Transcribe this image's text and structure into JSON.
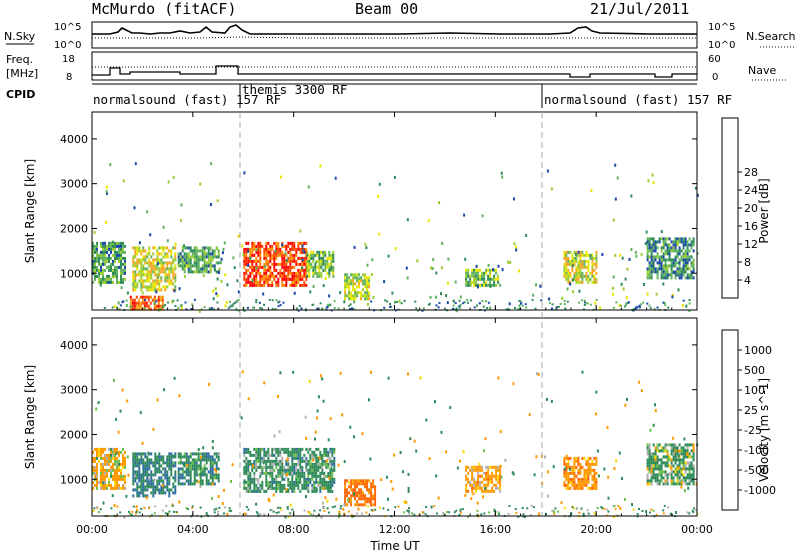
{
  "header": {
    "station": "McMurdo (fitACF)",
    "beam": "Beam 00",
    "date": "21/Jul/2011"
  },
  "top_panel": {
    "left_label": "N.Sky",
    "right_label": "N.Search",
    "left_ticks": [
      "10^5",
      "10^0"
    ],
    "right_ticks": [
      "10^5",
      "10^0"
    ]
  },
  "freq_panel": {
    "left_label_1": "Freq.",
    "left_label_2": "[MHz]",
    "right_label": "Nave",
    "left_ticks": [
      "18",
      "8"
    ],
    "right_ticks": [
      "60",
      "0"
    ]
  },
  "cpid": {
    "label": "CPID",
    "segments": [
      {
        "text": "normalsound (fast) 157 RF"
      },
      {
        "text": "themis 3300 RF"
      },
      {
        "text": "normalsound (fast) 157 RF"
      }
    ]
  },
  "x_axis": {
    "label": "Time UT",
    "ticks": [
      "00:00",
      "04:00",
      "08:00",
      "12:00",
      "16:00",
      "20:00",
      "00:00"
    ]
  },
  "y_axis": {
    "label": "Slant Range [km]",
    "ticks": [
      "1000",
      "2000",
      "3000",
      "4000"
    ]
  },
  "power_scale": {
    "title": "Power [dB]",
    "ticks": [
      "4",
      "8",
      "12",
      "16",
      "20",
      "24",
      "28"
    ],
    "colors": [
      "#0000ff",
      "#1b48a8",
      "#2e8b57",
      "#5fb35f",
      "#9acd32",
      "#e6e600",
      "#f5a623",
      "#ff8c00",
      "#ff4500",
      "#ff0000"
    ]
  },
  "velocity_scale": {
    "title": "Velocity [m s^-1]",
    "ticks": [
      "1000",
      "500",
      "100",
      "25",
      "-25",
      "-100",
      "-500",
      "-1000"
    ],
    "colors": [
      "#1e3c96",
      "#2e6e9e",
      "#2e8b57",
      "#6cc04a",
      "#b0b0b0",
      "#ffd700",
      "#ff9900",
      "#ff6600",
      "#ff0000"
    ]
  },
  "chart_data": {
    "type": "heatmap",
    "title": "McMurdo (fitACF) Beam 00 21/Jul/2011",
    "xlabel": "Time UT",
    "ylabel": "Slant Range [km]",
    "xlim": [
      "00:00",
      "24:00"
    ],
    "ylim": [
      180,
      4600
    ],
    "series": [
      {
        "name": "Power [dB]",
        "value_range": [
          0,
          30
        ],
        "regions": [
          {
            "t_start": 0.0,
            "t_end": 1.3,
            "r_min": 800,
            "r_max": 1700,
            "value": 10
          },
          {
            "t_start": 1.6,
            "t_end": 3.3,
            "r_min": 600,
            "r_max": 1600,
            "value": 16
          },
          {
            "t_start": 1.5,
            "t_end": 2.8,
            "r_min": 200,
            "r_max": 500,
            "value": 24
          },
          {
            "t_start": 3.4,
            "t_end": 5.0,
            "r_min": 1000,
            "r_max": 1600,
            "value": 10
          },
          {
            "t_start": 6.0,
            "t_end": 8.5,
            "r_min": 700,
            "r_max": 1700,
            "value": 26
          },
          {
            "t_start": 8.5,
            "t_end": 9.6,
            "r_min": 900,
            "r_max": 1500,
            "value": 12
          },
          {
            "t_start": 10.0,
            "t_end": 11.0,
            "r_min": 400,
            "r_max": 1000,
            "value": 14
          },
          {
            "t_start": 14.8,
            "t_end": 16.2,
            "r_min": 700,
            "r_max": 1100,
            "value": 12
          },
          {
            "t_start": 18.7,
            "t_end": 20.0,
            "r_min": 800,
            "r_max": 1500,
            "value": 16
          },
          {
            "t_start": 22.0,
            "t_end": 23.9,
            "r_min": 900,
            "r_max": 1800,
            "value": 8
          }
        ]
      },
      {
        "name": "Velocity [m s^-1]",
        "value_range": [
          -1000,
          1000
        ],
        "regions": [
          {
            "t_start": 0.0,
            "t_end": 1.3,
            "r_min": 800,
            "r_max": 1700,
            "value": -100
          },
          {
            "t_start": 1.6,
            "t_end": 3.3,
            "r_min": 600,
            "r_max": 1600,
            "value": 300
          },
          {
            "t_start": 3.4,
            "t_end": 5.0,
            "r_min": 900,
            "r_max": 1600,
            "value": 200
          },
          {
            "t_start": 6.0,
            "t_end": 9.6,
            "r_min": 700,
            "r_max": 1700,
            "value": 150
          },
          {
            "t_start": 10.0,
            "t_end": 11.2,
            "r_min": 400,
            "r_max": 1000,
            "value": -400
          },
          {
            "t_start": 14.8,
            "t_end": 16.2,
            "r_min": 700,
            "r_max": 1300,
            "value": -150
          },
          {
            "t_start": 18.7,
            "t_end": 20.0,
            "r_min": 800,
            "r_max": 1500,
            "value": -200
          },
          {
            "t_start": 22.0,
            "t_end": 23.9,
            "r_min": 900,
            "r_max": 1800,
            "value": 100
          }
        ]
      }
    ]
  }
}
